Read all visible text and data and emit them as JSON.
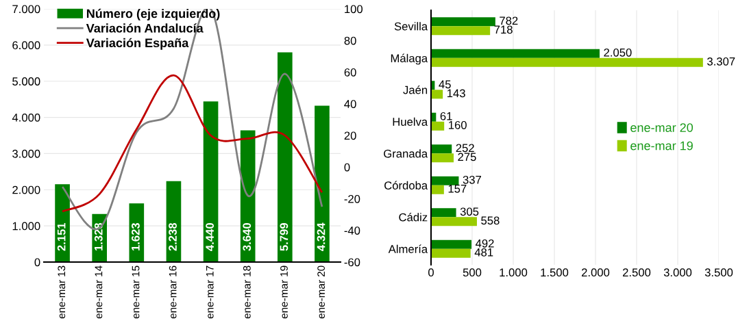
{
  "chart_data": [
    {
      "type": "bar",
      "categories": [
        "ene-mar 13",
        "ene-mar 14",
        "ene-mar 15",
        "ene-mar 16",
        "ene-mar 17",
        "ene-mar 18",
        "ene-mar 19",
        "ene-mar 20"
      ],
      "series": [
        {
          "name": "Número (eje izquierdo)",
          "color": "#008000",
          "values": [
            2151,
            1328,
            1623,
            2238,
            4440,
            3640,
            5799,
            4324
          ],
          "value_labels": [
            "2.151",
            "1.328",
            "1.623",
            "2.238",
            "4.440",
            "3.640",
            "5.799",
            "4.324"
          ]
        },
        {
          "name": "Variación Andalucía",
          "type": "line",
          "axis": "y2",
          "color": "#808080",
          "values": [
            -12.5,
            -38.5,
            22,
            37,
            100,
            -18,
            59,
            -25
          ]
        },
        {
          "name": "Variación España",
          "type": "line",
          "axis": "y2",
          "color": "#c00000",
          "values": [
            -28,
            -17,
            24,
            58,
            20,
            18,
            20,
            -16
          ]
        }
      ],
      "ylim": [
        0,
        7000
      ],
      "yticks": [
        0,
        {
          "value": 1000,
          "label": "1.000"
        },
        {
          "value": 2000,
          "label": "2.000"
        },
        {
          "value": 3000,
          "label": "3.000"
        },
        {
          "value": 4000,
          "label": "4.000"
        },
        {
          "value": 5000,
          "label": "5.000"
        },
        {
          "value": 6000,
          "label": "6.000"
        },
        {
          "value": 7000,
          "label": "7.000"
        }
      ],
      "y2lim": [
        -60,
        100
      ],
      "y2ticks": [
        -60,
        -40,
        -20,
        0,
        20,
        40,
        60,
        80,
        100
      ],
      "grid": "y",
      "legend": "top left",
      "marker": "none",
      "line_style": "solid"
    },
    {
      "type": "bar",
      "orientation": "horizontal",
      "categories": [
        "Sevilla",
        "Málaga",
        "Jaén",
        "Huelva",
        "Granada",
        "Córdoba",
        "Cádiz",
        "Almería"
      ],
      "series": [
        {
          "name": "ene-mar 20",
          "color": "#008000",
          "values": [
            782,
            2050,
            45,
            61,
            252,
            337,
            305,
            492
          ],
          "value_labels": [
            "782",
            "2.050",
            "45",
            "61",
            "252",
            "337",
            "305",
            "492"
          ]
        },
        {
          "name": "ene-mar 19",
          "color": "#99cc00",
          "values": [
            718,
            3307,
            143,
            160,
            275,
            157,
            558,
            481
          ],
          "value_labels": [
            "718",
            "3.307",
            "143",
            "160",
            "275",
            "157",
            "558",
            "481"
          ]
        }
      ],
      "xlim": [
        0,
        3500
      ],
      "xticks": [
        0,
        500,
        {
          "value": 1000,
          "label": "1.000"
        },
        {
          "value": 1500,
          "label": "1.500"
        },
        {
          "value": 2000,
          "label": "2.000"
        },
        {
          "value": 2500,
          "label": "2.500"
        },
        {
          "value": 3000,
          "label": "3.000"
        },
        {
          "value": 3500,
          "label": "3.500"
        }
      ],
      "grid": "x",
      "legend": "right"
    }
  ]
}
